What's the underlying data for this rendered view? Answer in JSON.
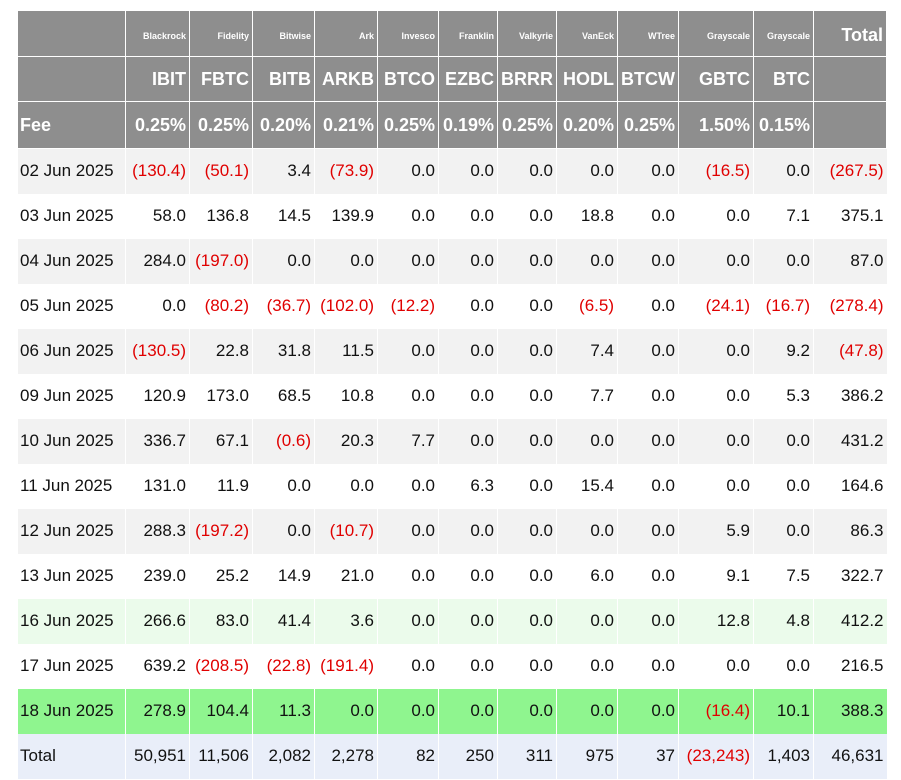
{
  "table": {
    "issuers": [
      "Blackrock",
      "Fidelity",
      "Bitwise",
      "Ark",
      "Invesco",
      "Franklin",
      "Valkyrie",
      "VanEck",
      "WTree",
      "Grayscale",
      "Grayscale"
    ],
    "total_label": "Total",
    "tickers": [
      "IBIT",
      "FBTC",
      "BITB",
      "ARKB",
      "BTCO",
      "EZBC",
      "BRRR",
      "HODL",
      "BTCW",
      "GBTC",
      "BTC"
    ],
    "fee_label": "Fee",
    "fees": [
      "0.25%",
      "0.25%",
      "0.20%",
      "0.21%",
      "0.25%",
      "0.19%",
      "0.25%",
      "0.20%",
      "0.25%",
      "1.50%",
      "0.15%"
    ],
    "rows": [
      [
        "02 Jun 2025",
        "(130.4)",
        "(50.1)",
        "3.4",
        "(73.9)",
        "0.0",
        "0.0",
        "0.0",
        "0.0",
        "0.0",
        "(16.5)",
        "0.0",
        "(267.5)"
      ],
      [
        "03 Jun 2025",
        "58.0",
        "136.8",
        "14.5",
        "139.9",
        "0.0",
        "0.0",
        "0.0",
        "18.8",
        "0.0",
        "0.0",
        "7.1",
        "375.1"
      ],
      [
        "04 Jun 2025",
        "284.0",
        "(197.0)",
        "0.0",
        "0.0",
        "0.0",
        "0.0",
        "0.0",
        "0.0",
        "0.0",
        "0.0",
        "0.0",
        "87.0"
      ],
      [
        "05 Jun 2025",
        "0.0",
        "(80.2)",
        "(36.7)",
        "(102.0)",
        "(12.2)",
        "0.0",
        "0.0",
        "(6.5)",
        "0.0",
        "(24.1)",
        "(16.7)",
        "(278.4)"
      ],
      [
        "06 Jun 2025",
        "(130.5)",
        "22.8",
        "31.8",
        "11.5",
        "0.0",
        "0.0",
        "0.0",
        "7.4",
        "0.0",
        "0.0",
        "9.2",
        "(47.8)"
      ],
      [
        "09 Jun 2025",
        "120.9",
        "173.0",
        "68.5",
        "10.8",
        "0.0",
        "0.0",
        "0.0",
        "7.7",
        "0.0",
        "0.0",
        "5.3",
        "386.2"
      ],
      [
        "10 Jun 2025",
        "336.7",
        "67.1",
        "(0.6)",
        "20.3",
        "7.7",
        "0.0",
        "0.0",
        "0.0",
        "0.0",
        "0.0",
        "0.0",
        "431.2"
      ],
      [
        "11 Jun 2025",
        "131.0",
        "11.9",
        "0.0",
        "0.0",
        "0.0",
        "6.3",
        "0.0",
        "15.4",
        "0.0",
        "0.0",
        "0.0",
        "164.6"
      ],
      [
        "12 Jun 2025",
        "288.3",
        "(197.2)",
        "0.0",
        "(10.7)",
        "0.0",
        "0.0",
        "0.0",
        "0.0",
        "0.0",
        "5.9",
        "0.0",
        "86.3"
      ],
      [
        "13 Jun 2025",
        "239.0",
        "25.2",
        "14.9",
        "21.0",
        "0.0",
        "0.0",
        "0.0",
        "6.0",
        "0.0",
        "9.1",
        "7.5",
        "322.7"
      ],
      [
        "16 Jun 2025",
        "266.6",
        "83.0",
        "41.4",
        "3.6",
        "0.0",
        "0.0",
        "0.0",
        "0.0",
        "0.0",
        "12.8",
        "4.8",
        "412.2"
      ],
      [
        "17 Jun 2025",
        "639.2",
        "(208.5)",
        "(22.8)",
        "(191.4)",
        "0.0",
        "0.0",
        "0.0",
        "0.0",
        "0.0",
        "0.0",
        "0.0",
        "216.5"
      ],
      [
        "18 Jun 2025",
        "278.9",
        "104.4",
        "11.3",
        "0.0",
        "0.0",
        "0.0",
        "0.0",
        "0.0",
        "0.0",
        "(16.4)",
        "10.1",
        "388.3"
      ],
      [
        "Total",
        "50,951",
        "11,506",
        "2,082",
        "2,278",
        "82",
        "250",
        "311",
        "975",
        "37",
        "(23,243)",
        "1,403",
        "46,631"
      ]
    ]
  }
}
